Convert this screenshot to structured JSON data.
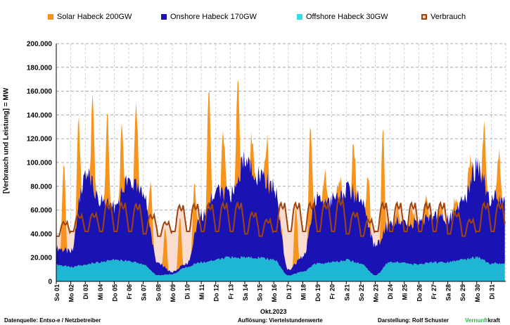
{
  "chart_data": {
    "type": "area",
    "title": "",
    "ylabel": "[Verbrauch und Leistung] =  MW",
    "xlabel": "Okt.2023",
    "ylim": [
      0,
      200000
    ],
    "yticks": [
      "0",
      "20.000",
      "40.000",
      "60.000",
      "80.000",
      "100.000",
      "120.000",
      "140.000",
      "160.000",
      "180.000",
      "200.000"
    ],
    "x_labels": [
      "So 01",
      "Mo 02",
      "Di 03",
      "Mi 04",
      "Do 05",
      "Fr 06",
      "Sa 07",
      "So 08",
      "Mo 09",
      "Di 10",
      "Mi 11",
      "Do 12",
      "Fr 13",
      "Sa 14",
      "So 15",
      "Mo 16",
      "Di 17",
      "Mi 18",
      "Do 19",
      "Fr 20",
      "Sa 21",
      "So 22",
      "Mo 23",
      "Di 24",
      "Mi 25",
      "Do 26",
      "Fr 27",
      "Sa 28",
      "So 29",
      "Mo 30",
      "Di 31"
    ],
    "legend_position": "top",
    "grid": true,
    "series": [
      {
        "name": "Solar Habeck 200GW",
        "color": "#f7941d",
        "daily_peak_top": [
          102000,
          97000,
          163000,
          142000,
          117000,
          150000,
          112000,
          48000,
          50000,
          58000,
          154000,
          127000,
          158000,
          128000,
          125000,
          83000,
          58000,
          104000,
          96000,
          85000,
          120000,
          112000,
          120000,
          60000,
          67000,
          64000,
          62000,
          62000,
          87000,
          140000,
          111000
        ]
      },
      {
        "name": "Onshore Habeck 170GW",
        "color": "#1a12b3",
        "daily_mean_top": [
          28000,
          25000,
          92000,
          68000,
          62000,
          85000,
          72000,
          15000,
          8000,
          15000,
          55000,
          75000,
          72000,
          100000,
          90000,
          78000,
          10000,
          20000,
          70000,
          68000,
          78000,
          70000,
          30000,
          48000,
          52000,
          48000,
          55000,
          52000,
          65000,
          95000,
          70000
        ]
      },
      {
        "name": "Offshore Habeck 30GW",
        "color": "#1fb6d4",
        "daily_mean": [
          14000,
          12000,
          14000,
          16000,
          18000,
          17000,
          14000,
          5000,
          6000,
          12000,
          16000,
          18000,
          20000,
          20000,
          20000,
          18000,
          5000,
          8000,
          15000,
          16000,
          18000,
          15000,
          5000,
          16000,
          16000,
          14000,
          16000,
          16000,
          18000,
          20000,
          15000
        ]
      },
      {
        "name": "Verbrauch",
        "color": "#a0440e",
        "daily_low": [
          38000,
          42000,
          42000,
          42000,
          42000,
          42000,
          40000,
          38000,
          42000,
          42000,
          42000,
          42000,
          42000,
          40000,
          38000,
          42000,
          42000,
          42000,
          42000,
          42000,
          40000,
          38000,
          42000,
          42000,
          42000,
          42000,
          42000,
          40000,
          38000,
          42000,
          42000
        ],
        "daily_high": [
          50000,
          56000,
          57000,
          66000,
          66000,
          65000,
          56000,
          50000,
          64000,
          65000,
          65000,
          66000,
          66000,
          58000,
          52000,
          66000,
          66000,
          66000,
          66000,
          70000,
          58000,
          52000,
          66000,
          66000,
          66000,
          66000,
          66000,
          58000,
          52000,
          66000,
          66000
        ]
      }
    ]
  },
  "legend": [
    {
      "label": "Solar Habeck 200GW",
      "color": "#f7941d",
      "outline": false
    },
    {
      "label": "Onshore Habeck 170GW",
      "color": "#1a12b3",
      "outline": false
    },
    {
      "label": "Offshore Habeck 30GW",
      "color": "#33e0e8",
      "outline": false
    },
    {
      "label": "Verbrauch",
      "color": "#a0440e",
      "outline": true
    }
  ],
  "footer": {
    "source": "Datenquelle: Entso-e  / Netzbetreiber",
    "resolution": "Auflösung: Viertelstundenwerte",
    "author": "Darstellung:  Rolf Schuster",
    "brand_a": "Vernunft",
    "brand_b": "kraft"
  }
}
